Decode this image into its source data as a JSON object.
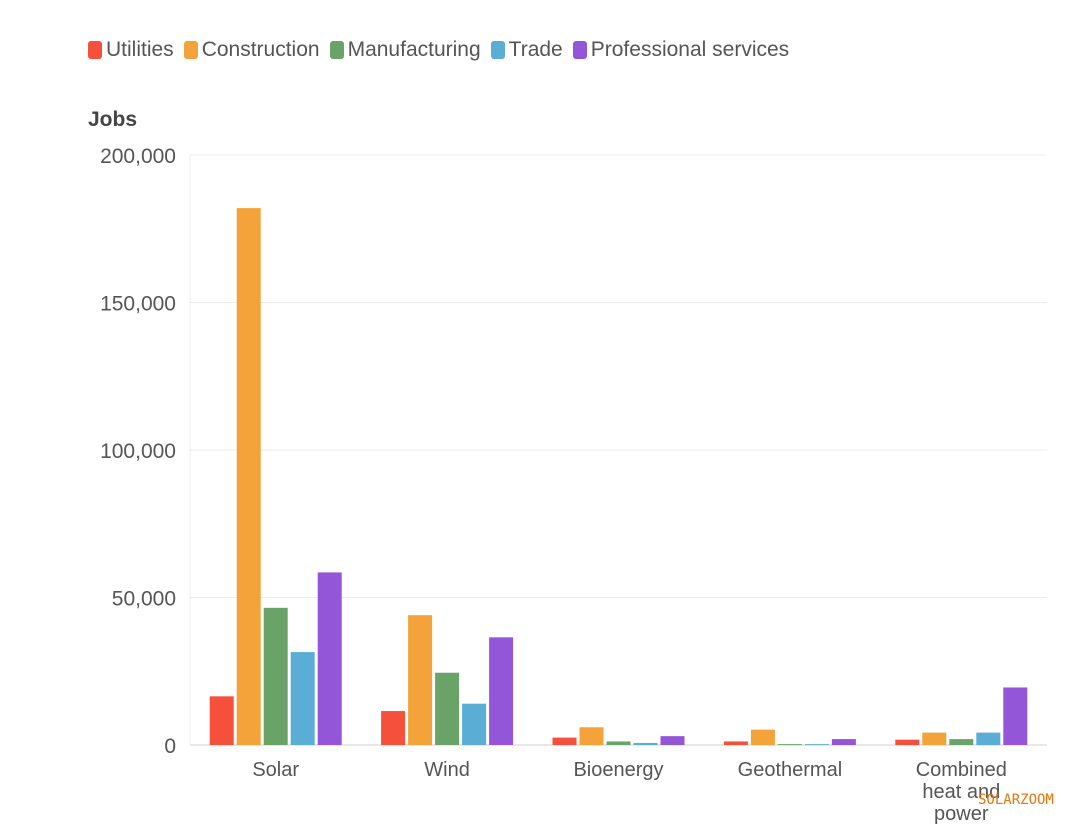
{
  "chart_data": {
    "type": "bar",
    "title": "",
    "xlabel": "",
    "ylabel": "Jobs",
    "ylim": [
      0,
      200000
    ],
    "yticks": [
      0,
      50000,
      100000,
      150000,
      200000
    ],
    "ytick_labels": [
      "0",
      "50,000",
      "100,000",
      "150,000",
      "200,000"
    ],
    "categories": [
      "Solar",
      "Wind",
      "Bioenergy",
      "Geothermal",
      "Combined heat and power"
    ],
    "category_label_lines": [
      [
        "Solar"
      ],
      [
        "Wind"
      ],
      [
        "Bioenergy"
      ],
      [
        "Geothermal"
      ],
      [
        "Combined",
        "heat and",
        "power"
      ]
    ],
    "series": [
      {
        "name": "Utilities",
        "color": "#f4503c",
        "values": [
          16500,
          11500,
          2500,
          1200,
          1800
        ]
      },
      {
        "name": "Construction",
        "color": "#f3a33a",
        "values": [
          182000,
          44000,
          6000,
          5200,
          4200
        ]
      },
      {
        "name": "Manufacturing",
        "color": "#6aa368",
        "values": [
          46500,
          24500,
          1200,
          300,
          2000
        ]
      },
      {
        "name": "Trade",
        "color": "#5aaed5",
        "values": [
          31500,
          14000,
          700,
          300,
          4200
        ]
      },
      {
        "name": "Professional services",
        "color": "#9456d8",
        "values": [
          58500,
          36500,
          3000,
          2000,
          19500
        ]
      }
    ],
    "grid": true,
    "legend_position": "top-left"
  },
  "watermark": "SOLARZOOM"
}
